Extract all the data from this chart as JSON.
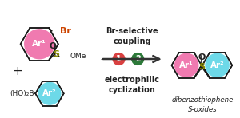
{
  "bg_color": "#ffffff",
  "pink_color": "#f07ab0",
  "cyan_color": "#6dd9e8",
  "red_circle_color": "#d94040",
  "green_circle_color": "#2d7a3a",
  "arrow_color": "#333333",
  "text_color": "#222222",
  "br_color": "#cc4400",
  "bond_color": "#1a1a1a",
  "s_color": "#999900",
  "text_br_selective": "Br-selective\ncoupling",
  "text_electrophilic": "electrophilic\ncyclization",
  "text_product_label": "dibenzothiophene\nS-oxides",
  "text_ome": "OMe",
  "text_hobo": "(HO)₂B",
  "text_plus": "+",
  "text_br": "Br",
  "text_ar1": "Ar¹",
  "text_ar2": "Ar²",
  "text_o": "O",
  "text_s": "S",
  "text_1": "1",
  "text_2": "2"
}
